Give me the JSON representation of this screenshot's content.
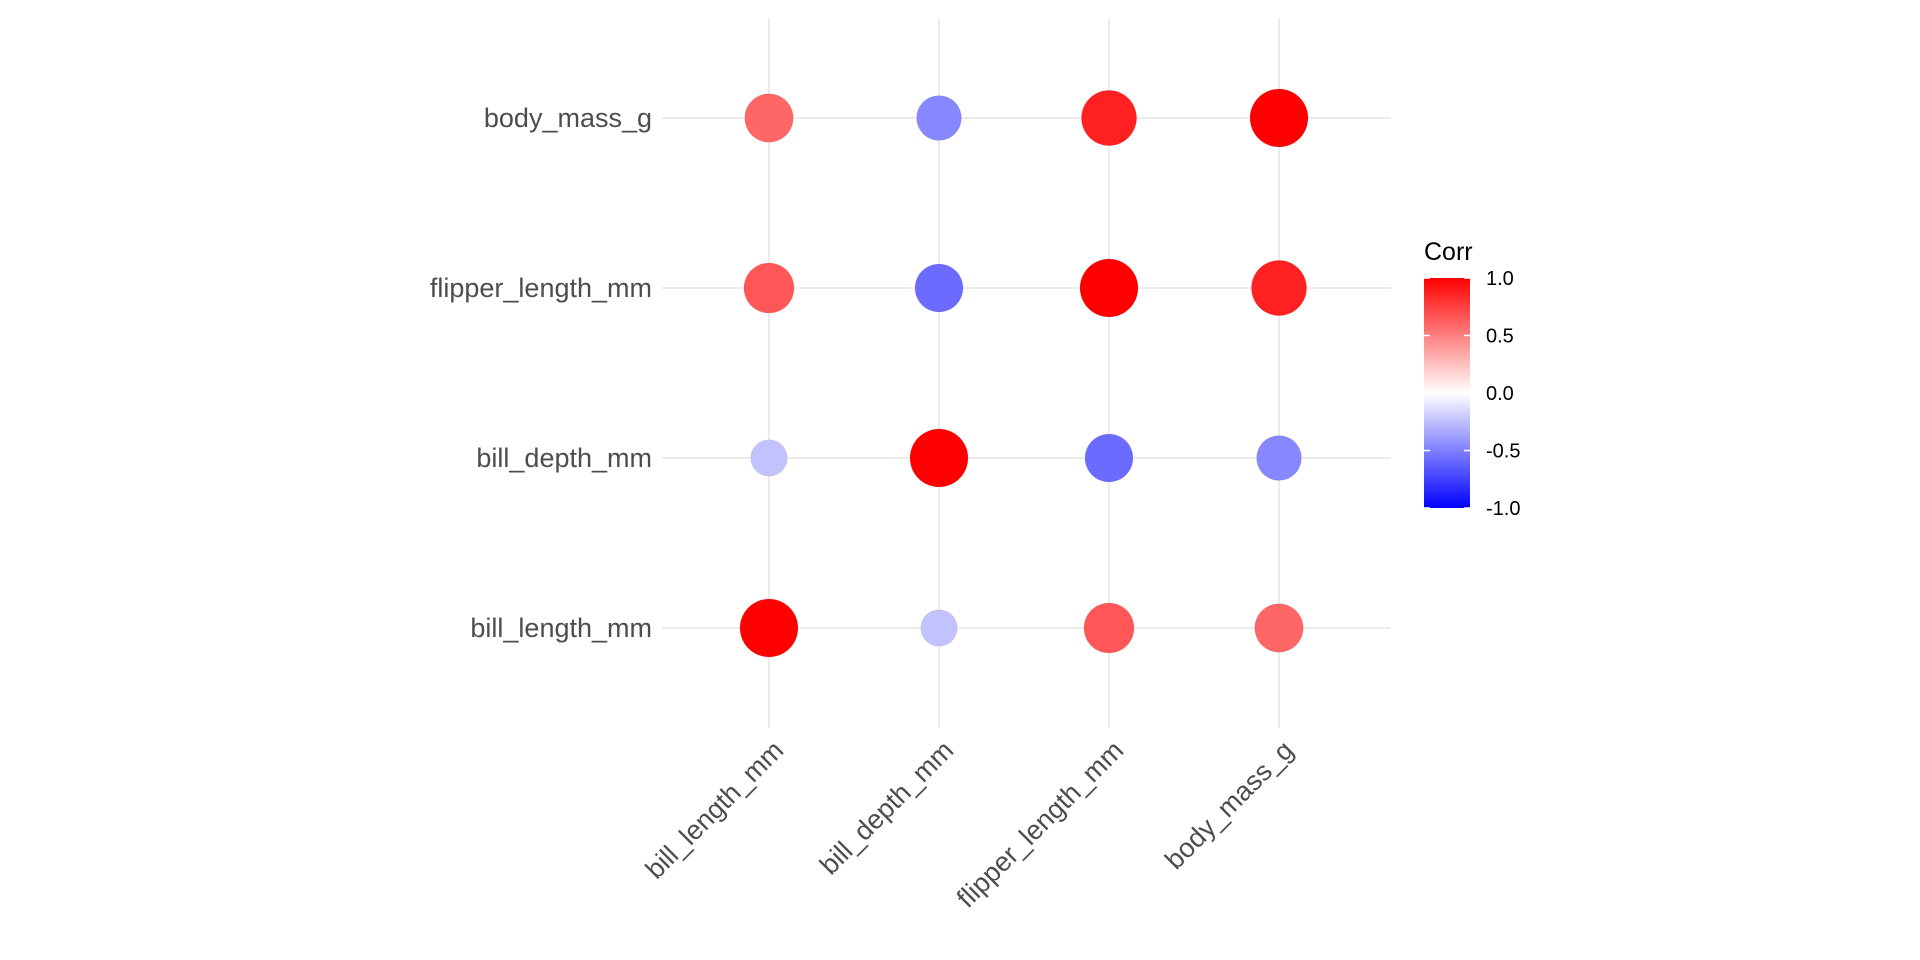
{
  "chart_data": {
    "type": "heatmap",
    "variables": [
      "bill_length_mm",
      "bill_depth_mm",
      "flipper_length_mm",
      "body_mass_g"
    ],
    "x_categories": [
      "bill_length_mm",
      "bill_depth_mm",
      "flipper_length_mm",
      "body_mass_g"
    ],
    "y_categories": [
      "bill_length_mm",
      "bill_depth_mm",
      "flipper_length_mm",
      "body_mass_g"
    ],
    "matrix": [
      [
        1.0,
        -0.24,
        0.66,
        0.6
      ],
      [
        -0.24,
        1.0,
        -0.58,
        -0.47
      ],
      [
        0.66,
        -0.58,
        1.0,
        0.87
      ],
      [
        0.6,
        -0.47,
        0.87,
        1.0
      ]
    ],
    "marker": "circle",
    "size_encodes": "absolute correlation",
    "grid": true,
    "legend": {
      "title": "Corr",
      "placement": "right",
      "ticks": [
        "1.0",
        "0.5",
        "0.0",
        "-0.5",
        "-1.0"
      ],
      "tick_values": [
        1.0,
        0.5,
        0.0,
        -0.5,
        -1.0
      ],
      "range": [
        -1.0,
        1.0
      ],
      "colors": {
        "low": "#0000ff",
        "mid": "#ffffff",
        "high": "#ff0000"
      }
    }
  }
}
